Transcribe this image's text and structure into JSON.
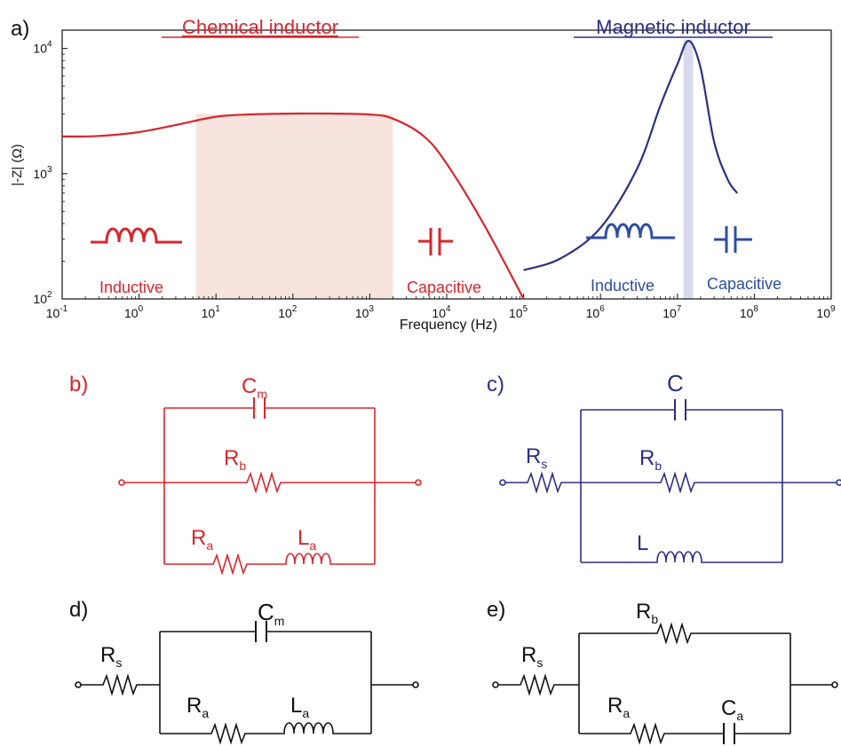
{
  "panel_labels": {
    "a": "a)",
    "b": "b)",
    "c": "c)",
    "d": "d)",
    "e": "e)"
  },
  "colors": {
    "chemical": "#d7262d",
    "magnetic": "#2d2e83",
    "magnetic_icon": "#2e4ea2",
    "chem_band": "#f7e4de",
    "mag_band": "#d9d9ee",
    "circuit_black": "#111111"
  },
  "chart_data": {
    "type": "line",
    "xlabel": "Frequency (Hz)",
    "ylabel": "|-Z| (Ω)",
    "xscale": "log",
    "yscale": "log",
    "xlim": [
      0.1,
      1000000000
    ],
    "ylim": [
      100,
      14000
    ],
    "x_ticks": [
      {
        "base": "10",
        "exp": "-1"
      },
      {
        "base": "10",
        "exp": "0"
      },
      {
        "base": "10",
        "exp": "1"
      },
      {
        "base": "10",
        "exp": "2"
      },
      {
        "base": "10",
        "exp": "3"
      },
      {
        "base": "10",
        "exp": "4"
      },
      {
        "base": "10",
        "exp": "5"
      },
      {
        "base": "10",
        "exp": "6"
      },
      {
        "base": "10",
        "exp": "7"
      },
      {
        "base": "10",
        "exp": "8"
      },
      {
        "base": "10",
        "exp": "9"
      }
    ],
    "y_ticks": [
      {
        "base": "10",
        "exp": "2"
      },
      {
        "base": "10",
        "exp": "3"
      },
      {
        "base": "10",
        "exp": "4"
      }
    ],
    "series": [
      {
        "name": "Chemical inductor",
        "points": [
          [
            0.1,
            1980
          ],
          [
            0.3,
            2000
          ],
          [
            1,
            2150
          ],
          [
            3,
            2450
          ],
          [
            10,
            2850
          ],
          [
            30,
            2980
          ],
          [
            100,
            3020
          ],
          [
            300,
            3020
          ],
          [
            1000,
            2970
          ],
          [
            2000,
            2750
          ],
          [
            5000,
            2000
          ],
          [
            10000,
            1200
          ],
          [
            30000,
            400
          ],
          [
            100000,
            100
          ]
        ]
      },
      {
        "name": "Magnetic inductor",
        "points": [
          [
            100000,
            170
          ],
          [
            300000,
            210
          ],
          [
            1000000,
            370
          ],
          [
            3000000,
            1100
          ],
          [
            6000000,
            3500
          ],
          [
            10000000,
            7500
          ],
          [
            14000000,
            11500
          ],
          [
            20000000,
            7000
          ],
          [
            30000000,
            1800
          ],
          [
            45000000,
            900
          ],
          [
            60000000,
            700
          ]
        ]
      }
    ],
    "shaded_regions": [
      {
        "series": "Chemical inductor",
        "x": [
          5.5,
          2000
        ]
      },
      {
        "series": "Magnetic inductor",
        "x": [
          12000000,
          16000000
        ]
      }
    ],
    "annotations": {
      "chem_title": "Chemical inductor",
      "mag_title": "Magnetic inductor",
      "chem_inductive": "Inductive",
      "chem_capacitive": "Capacitive",
      "mag_inductive": "Inductive",
      "mag_capacitive": "Capacitive"
    }
  },
  "circuits": {
    "b": {
      "Cm": "C",
      "Cm_sub": "m",
      "Rb": "R",
      "Rb_sub": "b",
      "Ra": "R",
      "Ra_sub": "a",
      "La": "L",
      "La_sub": "a"
    },
    "c": {
      "C": "C",
      "Rs": "R",
      "Rs_sub": "s",
      "Rb": "R",
      "Rb_sub": "b",
      "L": "L"
    },
    "d": {
      "Cm": "C",
      "Cm_sub": "m",
      "Rs": "R",
      "Rs_sub": "s",
      "Ra": "R",
      "Ra_sub": "a",
      "La": "L",
      "La_sub": "a"
    },
    "e": {
      "Rb": "R",
      "Rb_sub": "b",
      "Rs": "R",
      "Rs_sub": "s",
      "Ra": "R",
      "Ra_sub": "a",
      "Ca": "C",
      "Ca_sub": "a"
    }
  }
}
